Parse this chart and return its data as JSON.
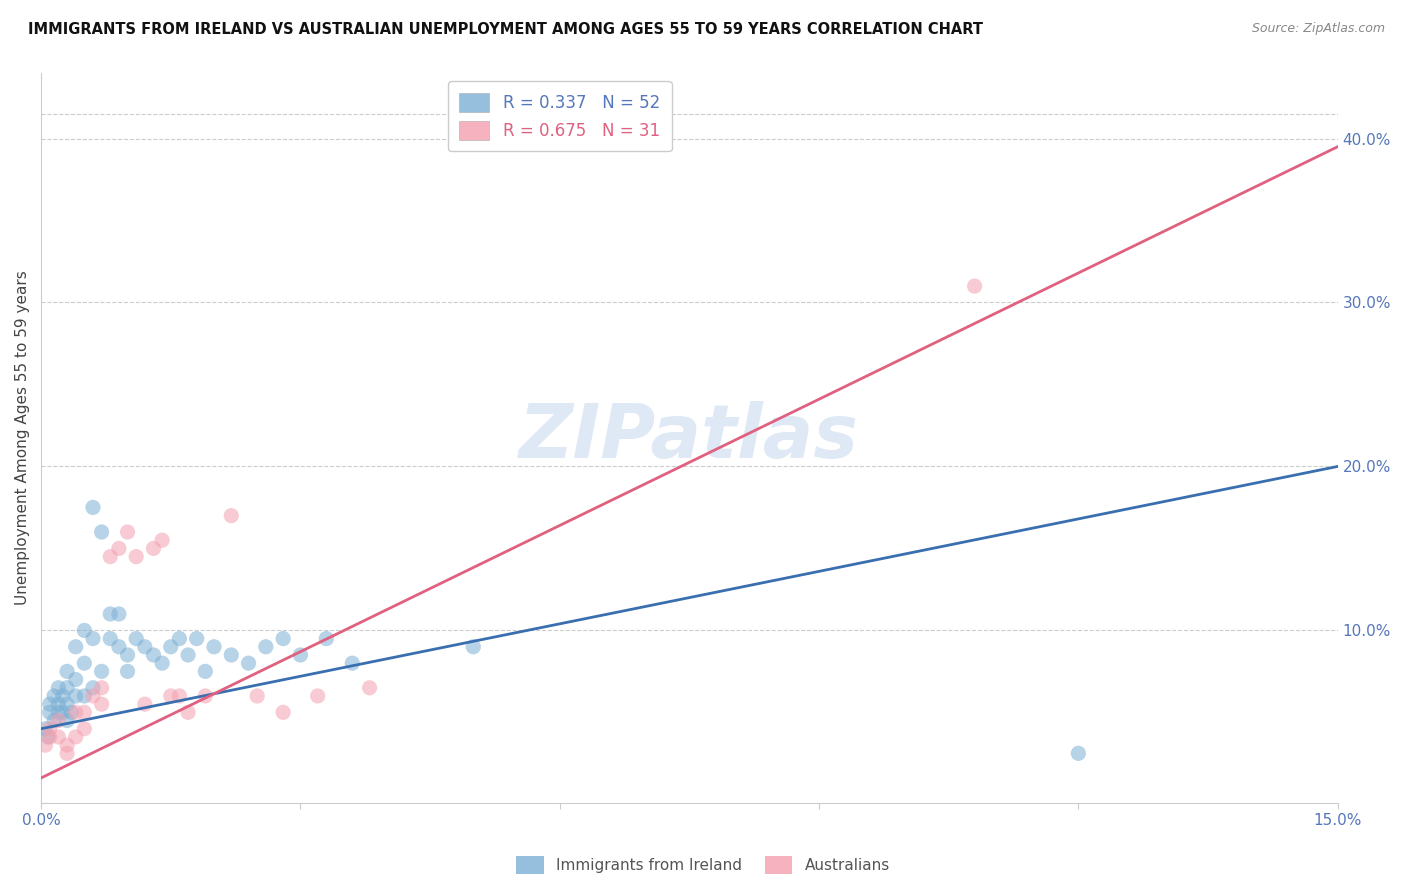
{
  "title": "IMMIGRANTS FROM IRELAND VS AUSTRALIAN UNEMPLOYMENT AMONG AGES 55 TO 59 YEARS CORRELATION CHART",
  "source": "Source: ZipAtlas.com",
  "ylabel": "Unemployment Among Ages 55 to 59 years",
  "xlim": [
    0.0,
    0.15
  ],
  "ylim": [
    -0.005,
    0.44
  ],
  "yticks_right": [
    0.1,
    0.2,
    0.3,
    0.4
  ],
  "ytick_right_labels": [
    "10.0%",
    "20.0%",
    "30.0%",
    "40.0%"
  ],
  "blue_color": "#7bafd4",
  "pink_color": "#f4a0b0",
  "blue_line_color": "#3a6faf",
  "pink_line_color": "#e06080",
  "blue_R": 0.337,
  "blue_N": 52,
  "pink_R": 0.675,
  "pink_N": 31,
  "tick_color": "#5577bb",
  "grid_color": "#cccccc",
  "watermark": "ZIPatlas",
  "blue_scatter_x": [
    0.0005,
    0.0008,
    0.001,
    0.001,
    0.0015,
    0.0015,
    0.002,
    0.002,
    0.002,
    0.0025,
    0.0025,
    0.003,
    0.003,
    0.003,
    0.003,
    0.0035,
    0.004,
    0.004,
    0.004,
    0.005,
    0.005,
    0.005,
    0.006,
    0.006,
    0.006,
    0.007,
    0.007,
    0.008,
    0.008,
    0.009,
    0.009,
    0.01,
    0.01,
    0.011,
    0.012,
    0.013,
    0.014,
    0.015,
    0.016,
    0.017,
    0.018,
    0.019,
    0.02,
    0.022,
    0.024,
    0.026,
    0.028,
    0.03,
    0.033,
    0.036,
    0.05,
    0.12
  ],
  "blue_scatter_y": [
    0.04,
    0.035,
    0.05,
    0.055,
    0.045,
    0.06,
    0.05,
    0.055,
    0.065,
    0.05,
    0.06,
    0.045,
    0.055,
    0.065,
    0.075,
    0.05,
    0.06,
    0.07,
    0.09,
    0.06,
    0.1,
    0.08,
    0.065,
    0.095,
    0.175,
    0.075,
    0.16,
    0.095,
    0.11,
    0.09,
    0.11,
    0.075,
    0.085,
    0.095,
    0.09,
    0.085,
    0.08,
    0.09,
    0.095,
    0.085,
    0.095,
    0.075,
    0.09,
    0.085,
    0.08,
    0.09,
    0.095,
    0.085,
    0.095,
    0.08,
    0.09,
    0.025
  ],
  "pink_scatter_x": [
    0.0005,
    0.001,
    0.001,
    0.002,
    0.002,
    0.003,
    0.003,
    0.004,
    0.004,
    0.005,
    0.005,
    0.006,
    0.007,
    0.007,
    0.008,
    0.009,
    0.01,
    0.011,
    0.012,
    0.013,
    0.014,
    0.015,
    0.016,
    0.017,
    0.019,
    0.022,
    0.025,
    0.028,
    0.032,
    0.038,
    0.108
  ],
  "pink_scatter_y": [
    0.03,
    0.035,
    0.04,
    0.035,
    0.045,
    0.03,
    0.025,
    0.035,
    0.05,
    0.04,
    0.05,
    0.06,
    0.055,
    0.065,
    0.145,
    0.15,
    0.16,
    0.145,
    0.055,
    0.15,
    0.155,
    0.06,
    0.06,
    0.05,
    0.06,
    0.17,
    0.06,
    0.05,
    0.06,
    0.065,
    0.31
  ],
  "blue_line_x": [
    0.0,
    0.15
  ],
  "blue_line_y": [
    0.04,
    0.2
  ],
  "pink_line_x": [
    0.0,
    0.15
  ],
  "pink_line_y": [
    0.01,
    0.395
  ]
}
